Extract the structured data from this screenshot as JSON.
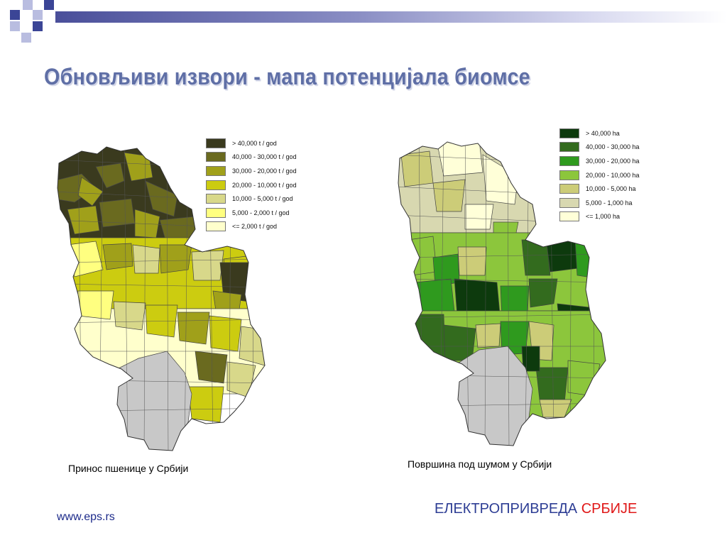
{
  "slide": {
    "title": "Обновљиви извори - мапа потенцијала биомсе",
    "footer_url": "www.eps.rs",
    "footer_brand_part1": "ЕЛЕКТРОПРИВРЕДА",
    "footer_brand_part2": "СРБИЈЕ"
  },
  "theme": {
    "title_color": "#5f6fa6",
    "deco_blue": "#3b4596",
    "deco_light": "#b9bde0",
    "brand_blue": "#2d3d94",
    "brand_red": "#e01818"
  },
  "wheat_map": {
    "caption": "Принос пшенице у Србији",
    "legend": [
      {
        "label": "> 40,000 t / god",
        "color": "#3a3a1e"
      },
      {
        "label": "40,000 - 30,000 t / god",
        "color": "#6a6a1f"
      },
      {
        "label": "30,000 - 20,000 t / god",
        "color": "#a0a01a"
      },
      {
        "label": "20,000 - 10,000 t / god",
        "color": "#cccc10"
      },
      {
        "label": "10,000 - 5,000 t / god",
        "color": "#d8d88a"
      },
      {
        "label": "5,000 - 2,000 t / god",
        "color": "#ffff80"
      },
      {
        "label": "<= 2,000 t / god",
        "color": "#ffffcc"
      }
    ],
    "no_data_color": "#c8c8c8"
  },
  "forest_map": {
    "caption": "Површина под шумом у Србији",
    "legend": [
      {
        "label": "> 40,000 ha",
        "color": "#0d3a0d"
      },
      {
        "label": "40,000 - 30,000 ha",
        "color": "#336b1e"
      },
      {
        "label": "30,000 - 20,000 ha",
        "color": "#2f9a1e"
      },
      {
        "label": "20,000 - 10,000 ha",
        "color": "#8cc63c"
      },
      {
        "label": "10,000 - 5,000 ha",
        "color": "#cccc78"
      },
      {
        "label": "5,000 - 1,000 ha",
        "color": "#d8d8b0"
      },
      {
        "label": "<= 1,000 ha",
        "color": "#ffffd8"
      }
    ],
    "no_data_color": "#c8c8c8"
  }
}
